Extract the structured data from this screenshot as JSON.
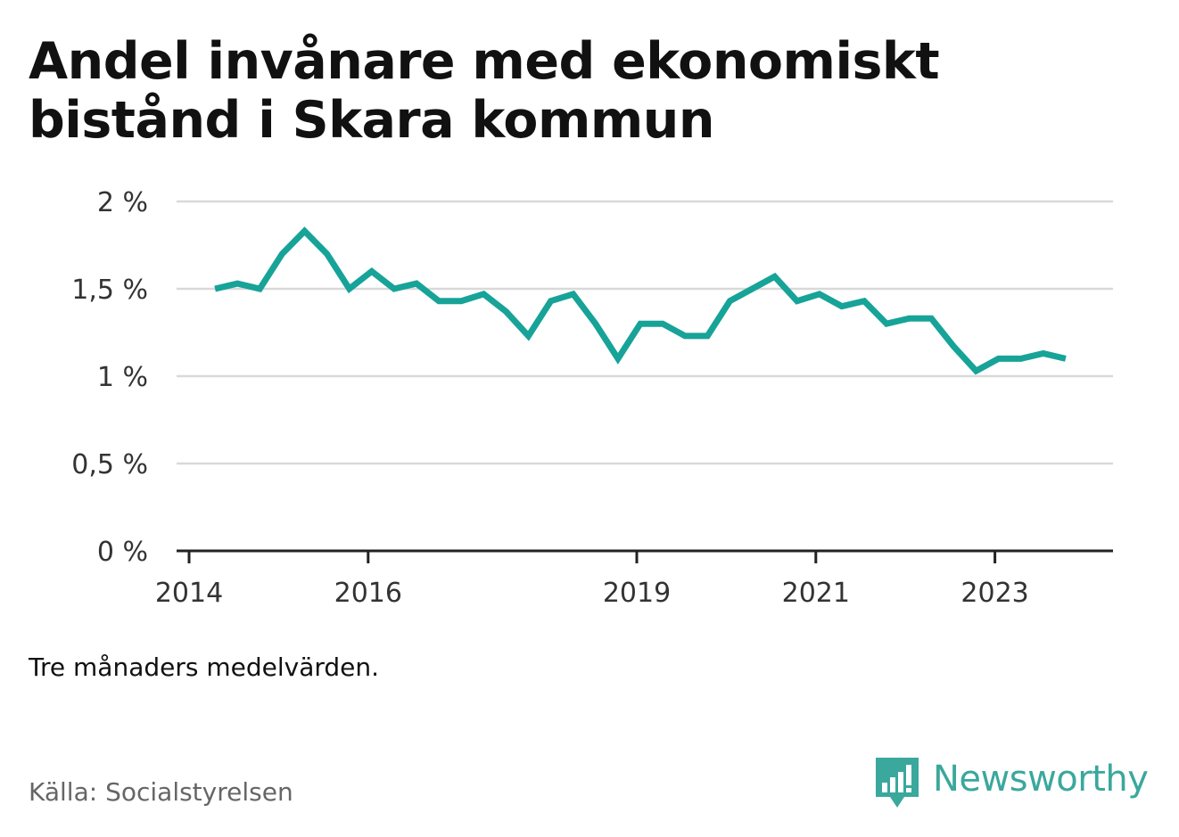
{
  "title": "Andel invånare med ekonomiskt bistånd i Skara kommun",
  "note": "Tre månaders medelvärden.",
  "source": "Källa: Socialstyrelsen",
  "brand": {
    "name": "Newsworthy",
    "icon": "newsworthy-logo-icon",
    "color": "#3aa89c"
  },
  "colors": {
    "line": "#17a398",
    "grid": "#d9d9d9",
    "axis": "#222222"
  },
  "chart_data": {
    "type": "line",
    "title": "Andel invånare med ekonomiskt bistånd i Skara kommun",
    "xlabel": "",
    "ylabel": "",
    "ylim": [
      0,
      2
    ],
    "yticks": [
      0,
      0.5,
      1,
      1.5,
      2
    ],
    "ytick_labels": [
      "0 %",
      "0,5 %",
      "1 %",
      "1,5 %",
      "2 %"
    ],
    "xlim": [
      2014,
      2024.25
    ],
    "xticks": [
      2014,
      2016,
      2019,
      2021,
      2023
    ],
    "xtick_labels": [
      "2014",
      "2016",
      "2019",
      "2021",
      "2023"
    ],
    "grid": true,
    "series": [
      {
        "values": [
          [
            2014.29,
            1.5
          ],
          [
            2014.54,
            1.53
          ],
          [
            2014.79,
            1.5
          ],
          [
            2015.04,
            1.7
          ],
          [
            2015.29,
            1.83
          ],
          [
            2015.54,
            1.7
          ],
          [
            2015.79,
            1.5
          ],
          [
            2016.04,
            1.6
          ],
          [
            2016.29,
            1.5
          ],
          [
            2016.54,
            1.53
          ],
          [
            2016.79,
            1.43
          ],
          [
            2017.04,
            1.43
          ],
          [
            2017.29,
            1.47
          ],
          [
            2017.54,
            1.37
          ],
          [
            2017.79,
            1.23
          ],
          [
            2018.04,
            1.43
          ],
          [
            2018.29,
            1.47
          ],
          [
            2018.54,
            1.3
          ],
          [
            2018.79,
            1.1
          ],
          [
            2019.04,
            1.3
          ],
          [
            2019.29,
            1.3
          ],
          [
            2019.54,
            1.23
          ],
          [
            2019.79,
            1.23
          ],
          [
            2020.04,
            1.43
          ],
          [
            2020.29,
            1.5
          ],
          [
            2020.54,
            1.57
          ],
          [
            2020.79,
            1.43
          ],
          [
            2021.04,
            1.47
          ],
          [
            2021.29,
            1.4
          ],
          [
            2021.54,
            1.43
          ],
          [
            2021.79,
            1.3
          ],
          [
            2022.04,
            1.33
          ],
          [
            2022.29,
            1.33
          ],
          [
            2022.54,
            1.17
          ],
          [
            2022.79,
            1.03
          ],
          [
            2023.04,
            1.1
          ],
          [
            2023.29,
            1.1
          ],
          [
            2023.54,
            1.13
          ],
          [
            2023.79,
            1.1
          ]
        ]
      }
    ]
  }
}
